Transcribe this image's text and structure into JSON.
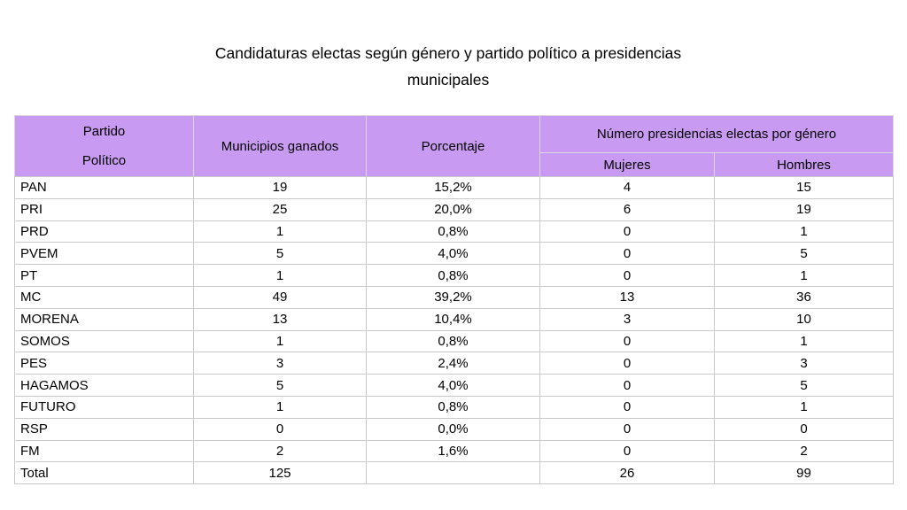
{
  "page": {
    "title_line1": "Candidaturas electas según género y partido político a presidencias",
    "title_line2": "municipales"
  },
  "table": {
    "header": {
      "partido_line1": "Partido",
      "partido_line2": "Político",
      "municipios": "Municipios ganados",
      "porcentaje": "Porcentaje",
      "genero_group": "Número presidencias electas por género",
      "mujeres": "Mujeres",
      "hombres": "Hombres"
    },
    "rows": [
      [
        "PAN",
        "19",
        "15,2%",
        "4",
        "15"
      ],
      [
        "PRI",
        "25",
        "20,0%",
        "6",
        "19"
      ],
      [
        "PRD",
        "1",
        "0,8%",
        "0",
        "1"
      ],
      [
        "PVEM",
        "5",
        "4,0%",
        "0",
        "5"
      ],
      [
        "PT",
        "1",
        "0,8%",
        "0",
        "1"
      ],
      [
        "MC",
        "49",
        "39,2%",
        "13",
        "36"
      ],
      [
        "MORENA",
        "13",
        "10,4%",
        "3",
        "10"
      ],
      [
        "SOMOS",
        "1",
        "0,8%",
        "0",
        "1"
      ],
      [
        "PES",
        "3",
        "2,4%",
        "0",
        "3"
      ],
      [
        "HAGAMOS",
        "5",
        "4,0%",
        "0",
        "5"
      ],
      [
        "FUTURO",
        "1",
        "0,8%",
        "0",
        "1"
      ],
      [
        "RSP",
        "0",
        "0,0%",
        "0",
        "0"
      ],
      [
        "FM",
        "2",
        "1,6%",
        "0",
        "2"
      ],
      [
        "Total",
        "125",
        "",
        "26",
        "99"
      ]
    ],
    "colors": {
      "header_bg": "#C99AF2",
      "header_divider": "#DCD6E2",
      "grid_border": "#C9C9C9",
      "text": "#000000",
      "background": "#FFFFFF"
    }
  }
}
